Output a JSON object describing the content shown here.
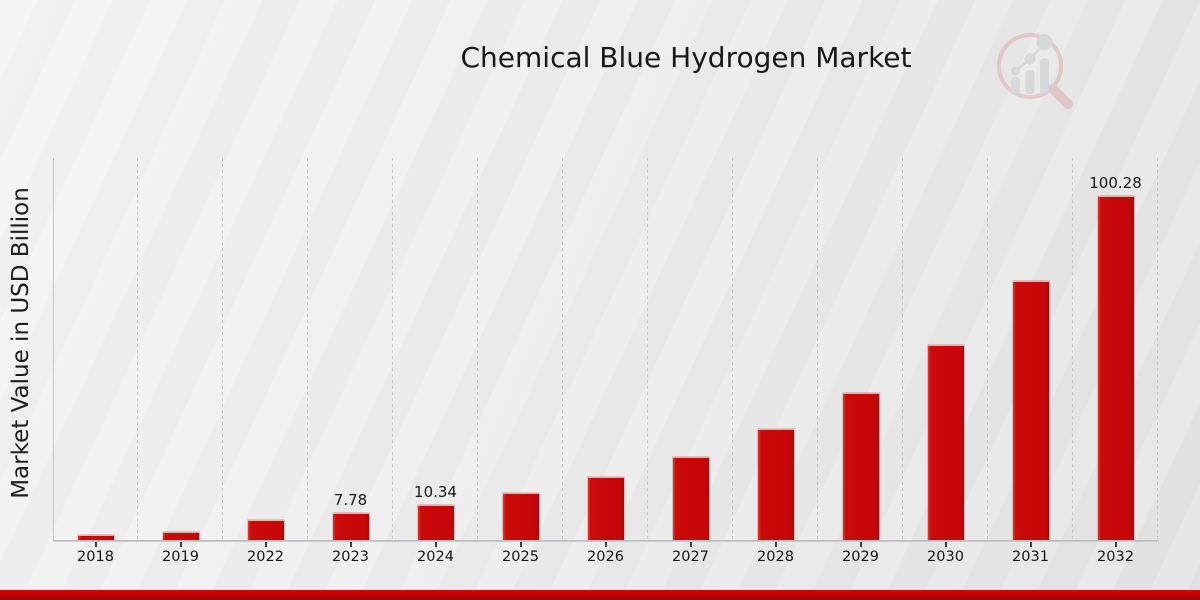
{
  "chart_data": {
    "type": "bar",
    "title": "Chemical Blue Hydrogen Market",
    "xlabel": "",
    "ylabel": "Market Value in USD Billion",
    "categories": [
      "2018",
      "2019",
      "2022",
      "2023",
      "2024",
      "2025",
      "2026",
      "2027",
      "2028",
      "2029",
      "2030",
      "2031",
      "2032"
    ],
    "values": [
      1.5,
      2.4,
      5.86,
      7.78,
      10.34,
      13.74,
      18.25,
      24.25,
      32.22,
      42.81,
      56.87,
      75.55,
      100.28
    ],
    "value_labels": {
      "2023": "7.78",
      "2024": "10.34",
      "2032": "100.28"
    },
    "ylim": [
      0,
      111.3
    ],
    "grid": "vertical-dashed-between-categories",
    "legend": "none",
    "bar_color": "#c70707",
    "accent_color": "#c40101",
    "background_color": "#ececec"
  },
  "brand": {
    "logo_icon": "magnifier-bar-chart-logo",
    "logo_ring_color": "#dcaaaa",
    "logo_bar_color": "#c5c7cb"
  }
}
